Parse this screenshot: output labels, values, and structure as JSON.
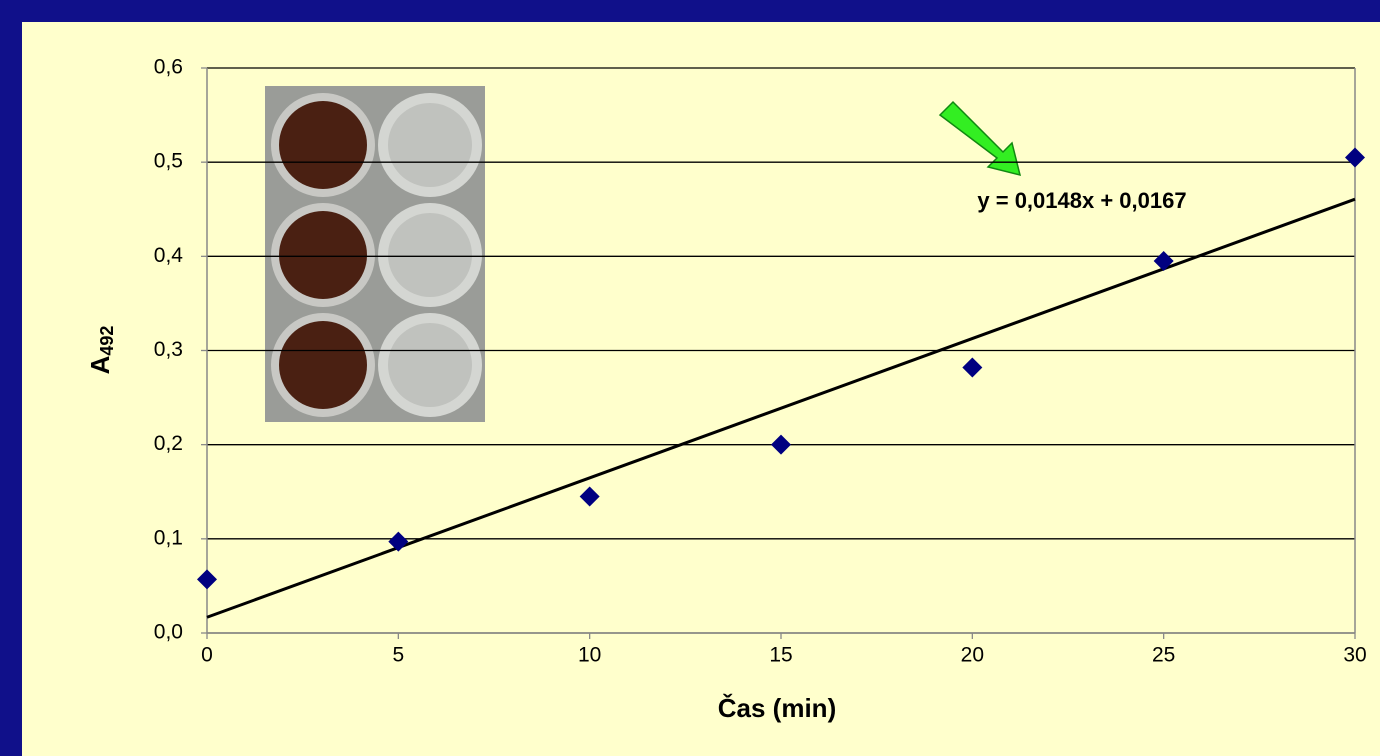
{
  "chart_data": {
    "type": "scatter",
    "x": [
      0,
      5,
      10,
      15,
      20,
      25,
      30
    ],
    "values": [
      0.057,
      0.097,
      0.145,
      0.2,
      0.282,
      0.395,
      0.505
    ],
    "color": "#000080",
    "xlabel": "Čas (min)",
    "ylabel": {
      "text": "A",
      "subscript": "492"
    },
    "xlim": [
      0,
      30
    ],
    "xticks": [
      0,
      5,
      10,
      15,
      20,
      25,
      30
    ],
    "ylim": [
      0,
      0.6
    ],
    "yticks": [
      {
        "value": 0,
        "label": "0,0"
      },
      {
        "value": 0.1,
        "label": "0,1"
      },
      {
        "value": 0.2,
        "label": "0,2"
      },
      {
        "value": 0.3,
        "label": "0,3"
      },
      {
        "value": 0.4,
        "label": "0,4"
      },
      {
        "value": 0.5,
        "label": "0,5"
      },
      {
        "value": 0.6,
        "label": "0,6"
      }
    ],
    "grid": true,
    "trendline": {
      "slope": 0.0148,
      "intercept": 0.0167,
      "label": "y = 0,0148x + 0,0167"
    }
  }
}
